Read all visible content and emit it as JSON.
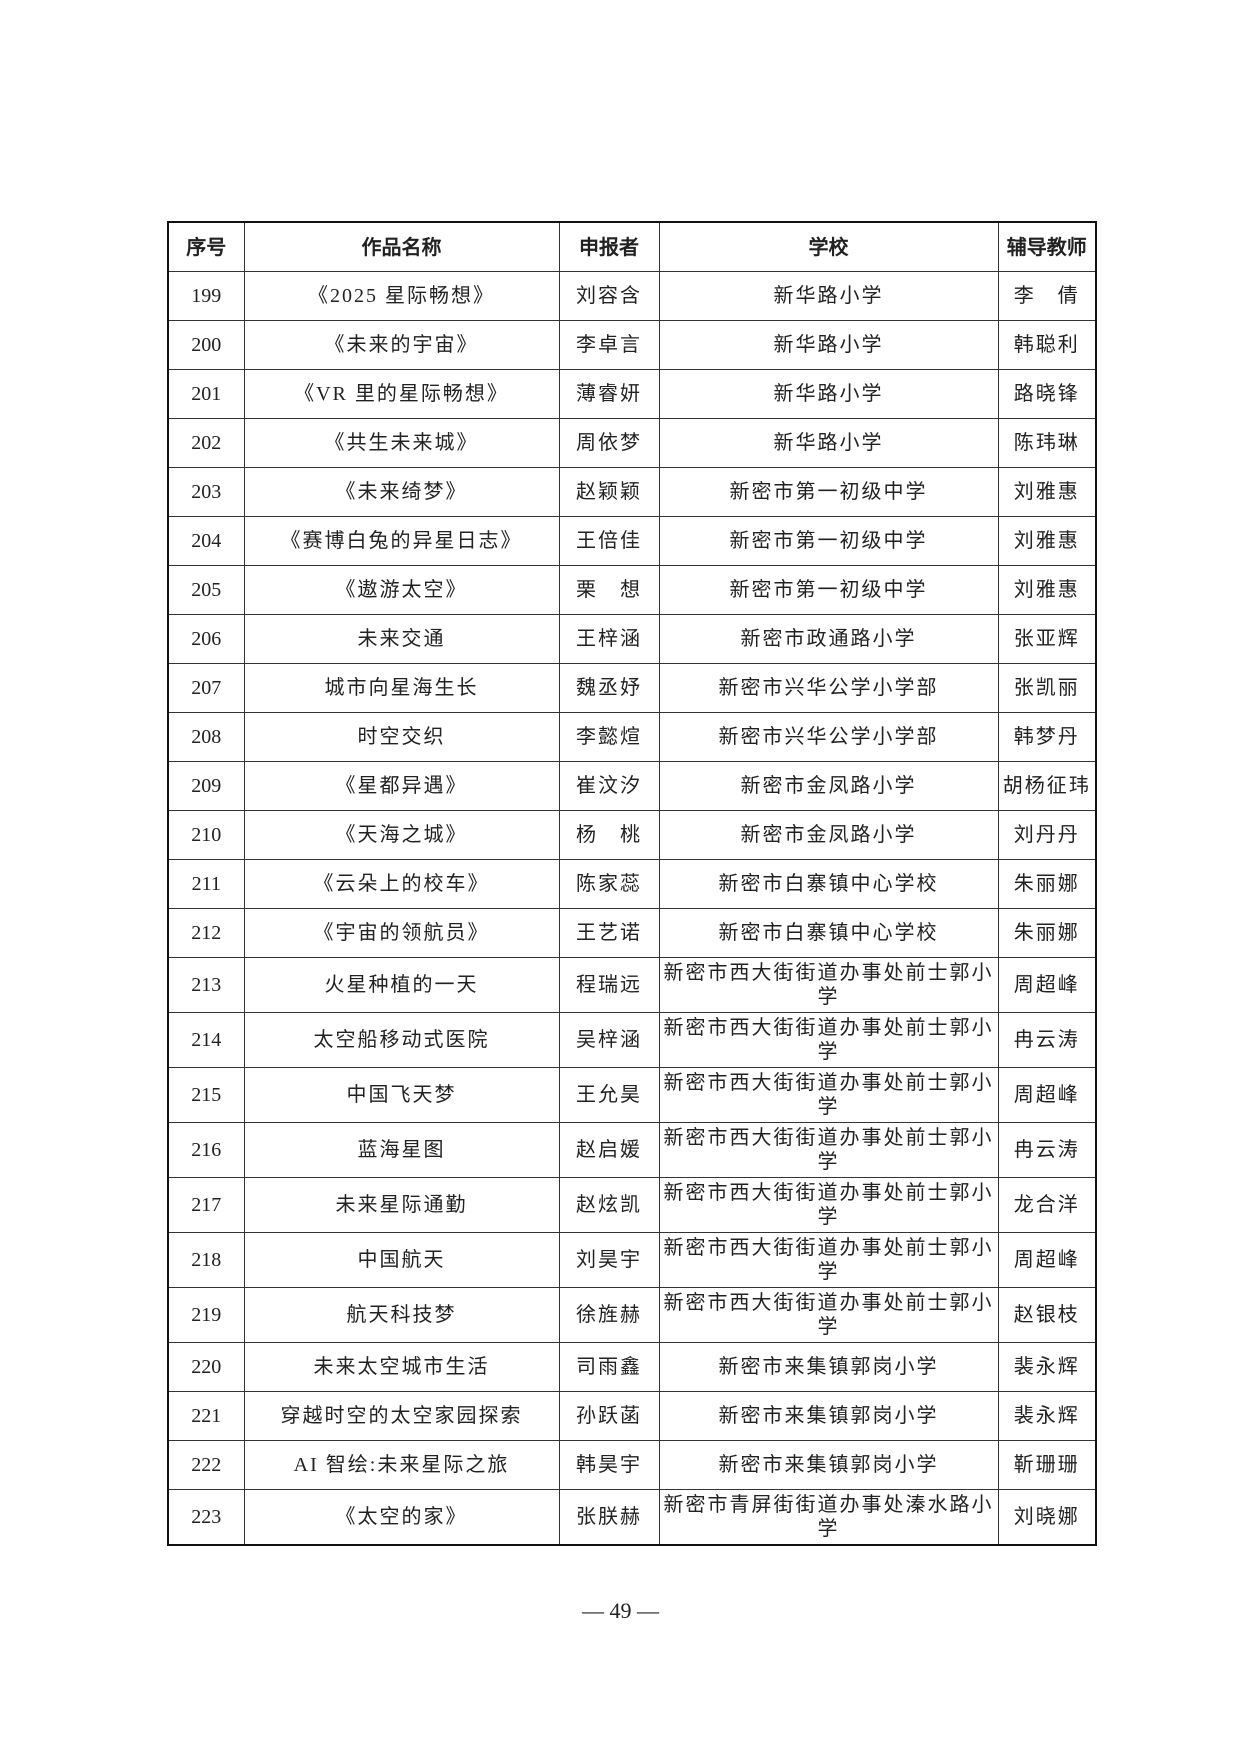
{
  "table": {
    "headers": [
      "序号",
      "作品名称",
      "申报者",
      "学校",
      "辅导教师"
    ],
    "rows": [
      [
        "199",
        "《2025 星际畅想》",
        "刘容含",
        "新华路小学",
        "李　倩"
      ],
      [
        "200",
        "《未来的宇宙》",
        "李卓言",
        "新华路小学",
        "韩聪利"
      ],
      [
        "201",
        "《VR 里的星际畅想》",
        "薄睿妍",
        "新华路小学",
        "路晓锋"
      ],
      [
        "202",
        "《共生未来城》",
        "周依梦",
        "新华路小学",
        "陈玮琳"
      ],
      [
        "203",
        "《未来绮梦》",
        "赵颖颖",
        "新密市第一初级中学",
        "刘雅惠"
      ],
      [
        "204",
        "《赛博白兔的异星日志》",
        "王倍佳",
        "新密市第一初级中学",
        "刘雅惠"
      ],
      [
        "205",
        "《遨游太空》",
        "栗　想",
        "新密市第一初级中学",
        "刘雅惠"
      ],
      [
        "206",
        "未来交通",
        "王梓涵",
        "新密市政通路小学",
        "张亚辉"
      ],
      [
        "207",
        "城市向星海生长",
        "魏丞妤",
        "新密市兴华公学小学部",
        "张凯丽"
      ],
      [
        "208",
        "时空交织",
        "李懿煊",
        "新密市兴华公学小学部",
        "韩梦丹"
      ],
      [
        "209",
        "《星都异遇》",
        "崔汶汐",
        "新密市金凤路小学",
        "胡杨征玮"
      ],
      [
        "210",
        "《天海之城》",
        "杨　桃",
        "新密市金凤路小学",
        "刘丹丹"
      ],
      [
        "211",
        "《云朵上的校车》",
        "陈家蕊",
        "新密市白寨镇中心学校",
        "朱丽娜"
      ],
      [
        "212",
        "《宇宙的领航员》",
        "王艺诺",
        "新密市白寨镇中心学校",
        "朱丽娜"
      ],
      [
        "213",
        "火星种植的一天",
        "程瑞远",
        "新密市西大街街道办事处前士郭小学",
        "周超峰"
      ],
      [
        "214",
        "太空船移动式医院",
        "吴梓涵",
        "新密市西大街街道办事处前士郭小学",
        "冉云涛"
      ],
      [
        "215",
        "中国飞天梦",
        "王允昊",
        "新密市西大街街道办事处前士郭小学",
        "周超峰"
      ],
      [
        "216",
        "蓝海星图",
        "赵启媛",
        "新密市西大街街道办事处前士郭小学",
        "冉云涛"
      ],
      [
        "217",
        "未来星际通勤",
        "赵炫凯",
        "新密市西大街街道办事处前士郭小学",
        "龙合洋"
      ],
      [
        "218",
        "中国航天",
        "刘昊宇",
        "新密市西大街街道办事处前士郭小学",
        "周超峰"
      ],
      [
        "219",
        "航天科技梦",
        "徐旌赫",
        "新密市西大街街道办事处前士郭小学",
        "赵银枝"
      ],
      [
        "220",
        "未来太空城市生活",
        "司雨鑫",
        "新密市来集镇郭岗小学",
        "裴永辉"
      ],
      [
        "221",
        "穿越时空的太空家园探索",
        "孙跃菡",
        "新密市来集镇郭岗小学",
        "裴永辉"
      ],
      [
        "222",
        "AI 智绘:未来星际之旅",
        "韩昊宇",
        "新密市来集镇郭岗小学",
        "靳珊珊"
      ],
      [
        "223",
        "《太空的家》",
        "张朕赫",
        "新密市青屏街街道办事处溱水路小学",
        "刘晓娜"
      ]
    ]
  },
  "page_number": "— 49 —"
}
